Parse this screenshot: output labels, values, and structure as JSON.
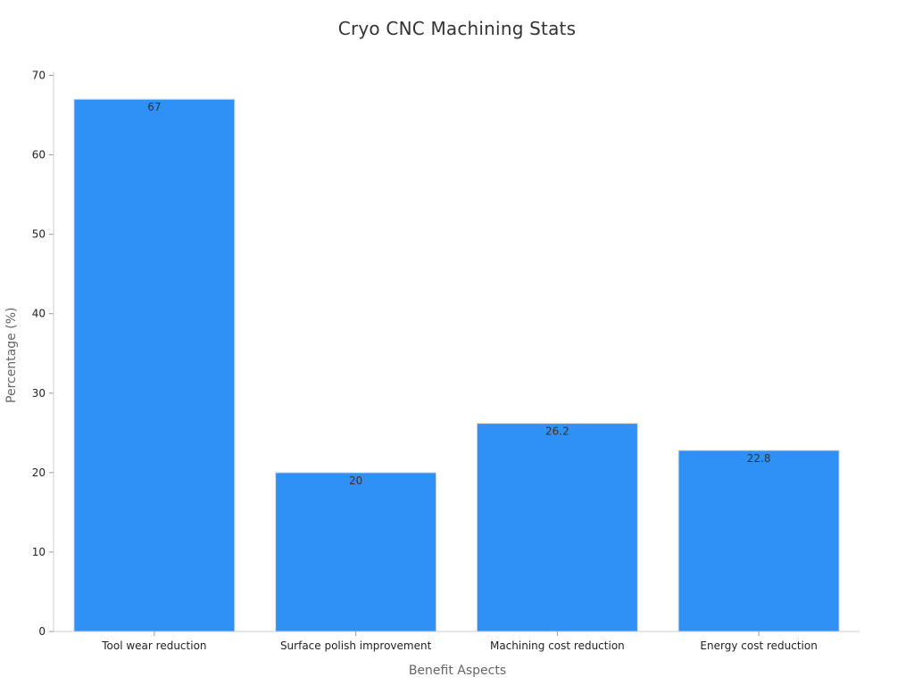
{
  "chart_data": {
    "type": "bar",
    "title": "Cryo CNC Machining Stats",
    "xlabel": "Benefit Aspects",
    "ylabel": "Percentage (%)",
    "categories": [
      "Tool wear reduction",
      "Surface polish improvement",
      "Machining cost reduction",
      "Energy cost reduction"
    ],
    "values": [
      67,
      20,
      26.2,
      22.8
    ],
    "data_labels": [
      "67",
      "20",
      "26.2",
      "22.8"
    ],
    "ylim": [
      0,
      70
    ],
    "yticks": [
      0,
      10,
      20,
      30,
      40,
      50,
      60,
      70
    ],
    "grid": false,
    "legend": "none",
    "colors": {
      "bar": "#2f91f6",
      "bar_edge": "#d8dee6",
      "axis": "#cccccc",
      "tick_text": "#222222",
      "title_text": "#333333",
      "axis_title_text": "#666666"
    }
  }
}
